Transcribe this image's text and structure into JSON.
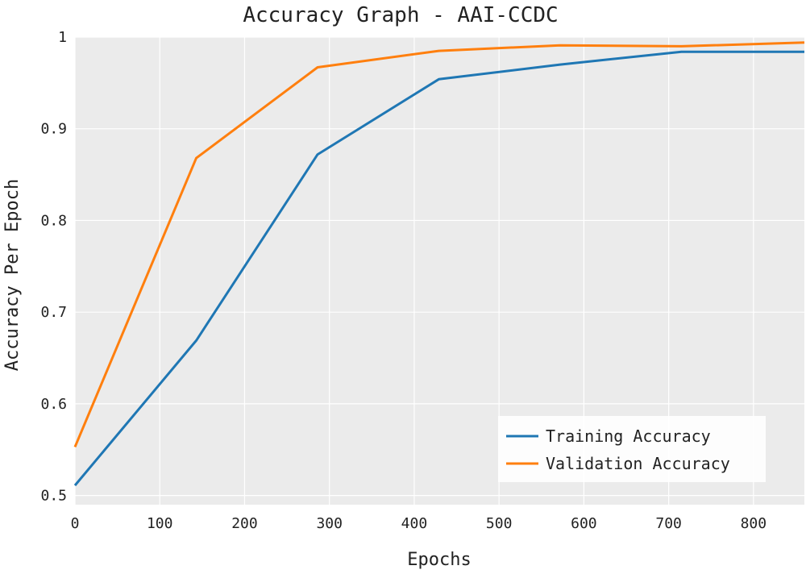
{
  "chart_data": {
    "type": "line",
    "title": "Accuracy Graph - AAI-CCDC",
    "xlabel": "Epochs",
    "ylabel": "Accuracy Per Epoch",
    "xlim": [
      0,
      860
    ],
    "ylim": [
      0.49,
      1.0
    ],
    "x_ticks": [
      0,
      100,
      200,
      300,
      400,
      500,
      600,
      700,
      800
    ],
    "y_ticks": [
      0.5,
      0.6,
      0.7,
      0.8,
      0.9,
      1
    ],
    "y_tick_labels": [
      "0.5",
      "0.6",
      "0.7",
      "0.8",
      "0.9",
      "1"
    ],
    "grid": true,
    "legend_position": "bottom-right",
    "series": [
      {
        "name": "Training Accuracy",
        "color": "#1f77b4",
        "x": [
          0,
          143,
          286,
          429,
          572,
          715,
          860
        ],
        "values": [
          0.511,
          0.669,
          0.872,
          0.954,
          0.97,
          0.984,
          0.984
        ]
      },
      {
        "name": "Validation Accuracy",
        "color": "#ff7f0e",
        "x": [
          0,
          143,
          286,
          429,
          572,
          715,
          860
        ],
        "values": [
          0.553,
          0.868,
          0.967,
          0.985,
          0.991,
          0.99,
          0.994
        ]
      }
    ]
  },
  "colors": {
    "plot_background": "#ebebeb",
    "grid": "#ffffff"
  }
}
